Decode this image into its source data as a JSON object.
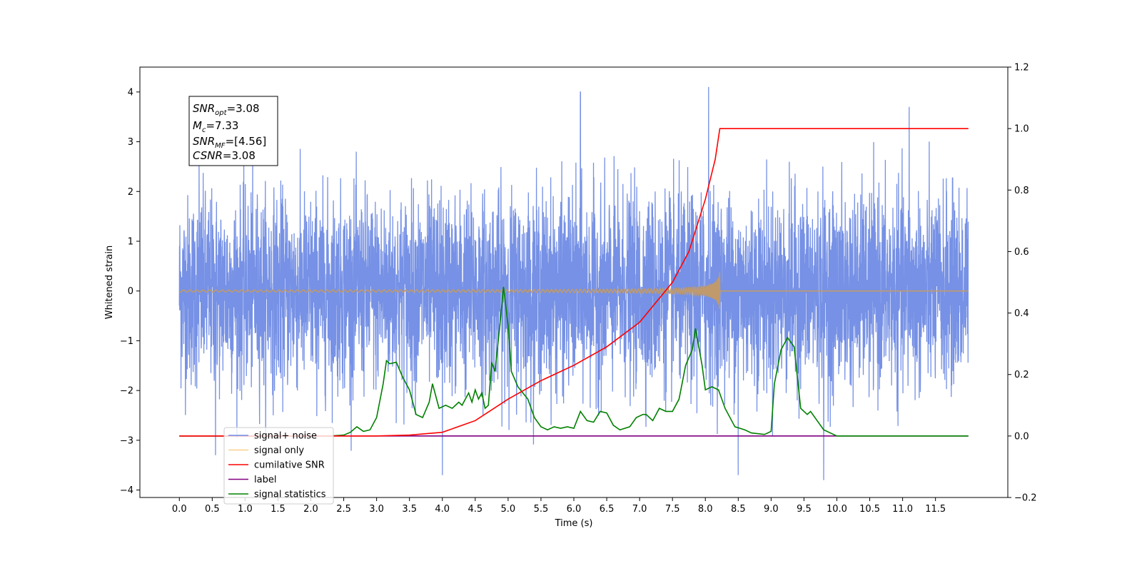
{
  "chart_data": {
    "type": "line",
    "xlabel": "Time (s)",
    "ylabel": "Whitened strain",
    "xlim": [
      -0.6,
      12.6
    ],
    "ylim": [
      -4.15,
      4.5
    ],
    "ylim_right": [
      -0.2,
      1.2
    ],
    "x_ticks": [
      "0.0",
      "0.5",
      "1.0",
      "1.5",
      "2.0",
      "2.5",
      "3.0",
      "3.5",
      "4.0",
      "4.5",
      "5.0",
      "5.5",
      "6.0",
      "6.5",
      "7.0",
      "7.5",
      "8.0",
      "8.5",
      "9.0",
      "9.5",
      "10.0",
      "10.5",
      "11.0",
      "11.5"
    ],
    "y_ticks_left": [
      "−4",
      "−3",
      "−2",
      "−1",
      "0",
      "1",
      "2",
      "3",
      "4"
    ],
    "y_ticks_right": [
      "−0.2",
      "0.0",
      "0.2",
      "0.4",
      "0.6",
      "0.8",
      "1.0",
      "1.2"
    ],
    "info_box": {
      "snr_opt": "=3.08",
      "mc": "=7.33",
      "snr_mf": "=[4.56]",
      "csnr": "=3.08"
    },
    "series": [
      {
        "name": "signal+ noise",
        "color": "#6f8be4",
        "axis": "left",
        "kind": "noise band",
        "x_range": [
          0.0,
          12.0
        ],
        "amplitude_band": [
          -1.7,
          1.7
        ],
        "peaks": [
          [
            0.3,
            2.8
          ],
          [
            4.0,
            -3.7
          ],
          [
            6.1,
            4.0
          ],
          [
            8.05,
            4.1
          ],
          [
            9.8,
            -3.8
          ],
          [
            11.1,
            3.7
          ],
          [
            0.55,
            -3.3
          ],
          [
            8.5,
            -3.7
          ]
        ]
      },
      {
        "name": "signal only",
        "color": "#f5b041",
        "axis": "left",
        "kind": "chirp",
        "x_range": [
          0.0,
          8.22
        ],
        "max_amplitude": 0.4
      },
      {
        "name": "cumilative SNR",
        "color": "#ff0000",
        "axis": "right",
        "points": [
          [
            0.0,
            0.0
          ],
          [
            2.0,
            0.0
          ],
          [
            3.0,
            0.0
          ],
          [
            3.5,
            0.003
          ],
          [
            4.0,
            0.012
          ],
          [
            4.5,
            0.05
          ],
          [
            5.0,
            0.12
          ],
          [
            5.5,
            0.18
          ],
          [
            6.0,
            0.23
          ],
          [
            6.5,
            0.29
          ],
          [
            7.0,
            0.37
          ],
          [
            7.5,
            0.5
          ],
          [
            7.75,
            0.6
          ],
          [
            8.0,
            0.77
          ],
          [
            8.15,
            0.9
          ],
          [
            8.22,
            1.0
          ],
          [
            11.0,
            1.0
          ],
          [
            12.0,
            1.0
          ]
        ]
      },
      {
        "name": "label",
        "color": "#800080",
        "axis": "right",
        "points": [
          [
            0.0,
            0.0
          ],
          [
            12.0,
            0.0
          ]
        ]
      },
      {
        "name": "signal statistics",
        "color": "#008000",
        "axis": "right",
        "points": [
          [
            0.0,
            0.0
          ],
          [
            2.3,
            0.0
          ],
          [
            2.5,
            0.003
          ],
          [
            2.6,
            0.012
          ],
          [
            2.7,
            0.03
          ],
          [
            2.8,
            0.015
          ],
          [
            2.9,
            0.02
          ],
          [
            3.0,
            0.06
          ],
          [
            3.1,
            0.17
          ],
          [
            3.15,
            0.245
          ],
          [
            3.2,
            0.235
          ],
          [
            3.3,
            0.24
          ],
          [
            3.4,
            0.19
          ],
          [
            3.5,
            0.15
          ],
          [
            3.6,
            0.07
          ],
          [
            3.7,
            0.06
          ],
          [
            3.8,
            0.11
          ],
          [
            3.85,
            0.17
          ],
          [
            3.95,
            0.09
          ],
          [
            4.05,
            0.1
          ],
          [
            4.15,
            0.09
          ],
          [
            4.25,
            0.11
          ],
          [
            4.3,
            0.1
          ],
          [
            4.4,
            0.14
          ],
          [
            4.45,
            0.11
          ],
          [
            4.5,
            0.15
          ],
          [
            4.55,
            0.12
          ],
          [
            4.6,
            0.14
          ],
          [
            4.65,
            0.09
          ],
          [
            4.7,
            0.1
          ],
          [
            4.75,
            0.24
          ],
          [
            4.8,
            0.21
          ],
          [
            4.87,
            0.35
          ],
          [
            4.93,
            0.485
          ],
          [
            5.0,
            0.36
          ],
          [
            5.05,
            0.21
          ],
          [
            5.15,
            0.16
          ],
          [
            5.3,
            0.12
          ],
          [
            5.4,
            0.06
          ],
          [
            5.5,
            0.03
          ],
          [
            5.6,
            0.02
          ],
          [
            5.7,
            0.03
          ],
          [
            5.8,
            0.025
          ],
          [
            5.9,
            0.03
          ],
          [
            6.0,
            0.025
          ],
          [
            6.1,
            0.08
          ],
          [
            6.2,
            0.05
          ],
          [
            6.3,
            0.045
          ],
          [
            6.4,
            0.08
          ],
          [
            6.5,
            0.075
          ],
          [
            6.6,
            0.035
          ],
          [
            6.7,
            0.02
          ],
          [
            6.85,
            0.03
          ],
          [
            6.95,
            0.06
          ],
          [
            7.05,
            0.07
          ],
          [
            7.1,
            0.07
          ],
          [
            7.2,
            0.05
          ],
          [
            7.3,
            0.09
          ],
          [
            7.4,
            0.08
          ],
          [
            7.5,
            0.08
          ],
          [
            7.6,
            0.12
          ],
          [
            7.7,
            0.23
          ],
          [
            7.8,
            0.28
          ],
          [
            7.85,
            0.35
          ],
          [
            7.95,
            0.23
          ],
          [
            8.0,
            0.15
          ],
          [
            8.1,
            0.16
          ],
          [
            8.2,
            0.15
          ],
          [
            8.3,
            0.09
          ],
          [
            8.45,
            0.03
          ],
          [
            8.6,
            0.02
          ],
          [
            8.7,
            0.01
          ],
          [
            8.9,
            0.005
          ],
          [
            9.0,
            0.015
          ],
          [
            9.05,
            0.17
          ],
          [
            9.15,
            0.28
          ],
          [
            9.25,
            0.32
          ],
          [
            9.35,
            0.29
          ],
          [
            9.45,
            0.09
          ],
          [
            9.55,
            0.07
          ],
          [
            9.6,
            0.08
          ],
          [
            9.7,
            0.05
          ],
          [
            9.8,
            0.02
          ],
          [
            10.0,
            0.0
          ],
          [
            12.0,
            0.0
          ]
        ]
      }
    ],
    "legend_position": "lower-left"
  }
}
